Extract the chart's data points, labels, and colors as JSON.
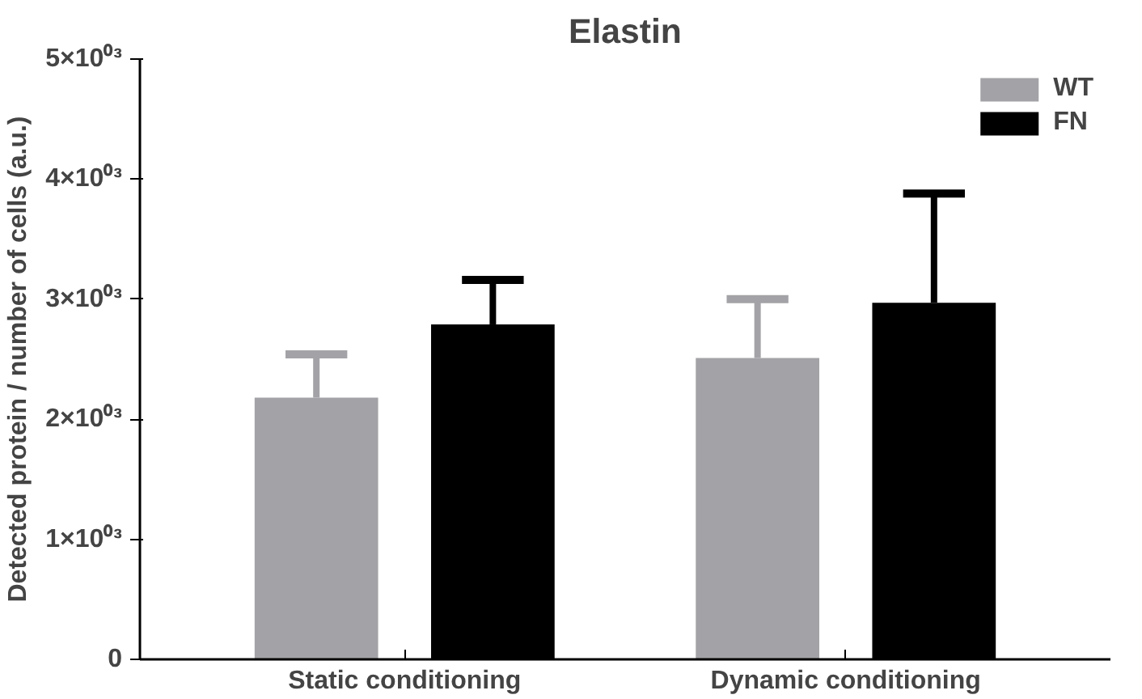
{
  "chart_data": {
    "type": "bar",
    "title": "Elastin",
    "ylabel": "Detected protein / number of cells (a.u.)",
    "categories": [
      "Static conditioning",
      "Dynamic conditioning"
    ],
    "series": [
      {
        "name": "WT",
        "color": "#a3a3a7",
        "values": [
          2180,
          2510
        ],
        "errors": [
          [
            2180,
            2540
          ],
          [
            2510,
            3000
          ]
        ]
      },
      {
        "name": "FN",
        "color": "#000000",
        "values": [
          2790,
          2970
        ],
        "errors": [
          [
            2790,
            3160
          ],
          [
            2970,
            3880
          ]
        ]
      }
    ],
    "ylim": [
      0,
      5000
    ],
    "yticks": [
      0,
      {
        "value": 1000,
        "label": "1×10⁰³"
      },
      {
        "value": 2000,
        "label": "2×10⁰³"
      },
      {
        "value": 3000,
        "label": "3×10⁰³"
      },
      {
        "value": 4000,
        "label": "4×10⁰³"
      },
      {
        "value": 5000,
        "label": "5×10⁰³"
      }
    ],
    "grid": false,
    "legend": "top right"
  }
}
